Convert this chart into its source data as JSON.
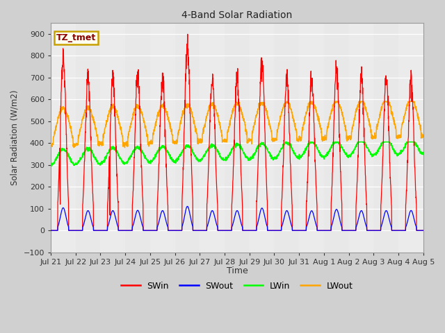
{
  "title": "4-Band Solar Radiation",
  "xlabel": "Time",
  "ylabel": "Solar Radiation (W/m2)",
  "ylim": [
    -100,
    950
  ],
  "yticks": [
    -100,
    0,
    100,
    200,
    300,
    400,
    500,
    600,
    700,
    800,
    900
  ],
  "annotation": "TZ_tmet",
  "fig_bg_color": "#d0d0d0",
  "plot_bg_color": "#e8e8e8",
  "legend_labels": [
    "SWin",
    "SWout",
    "LWin",
    "LWout"
  ],
  "legend_colors": [
    "red",
    "blue",
    "#00ff00",
    "orange"
  ],
  "x_tick_labels": [
    "Jul 21",
    "Jul 22",
    "Jul 23",
    "Jul 24",
    "Jul 25",
    "Jul 26",
    "Jul 27",
    "Jul 28",
    "Jul 29",
    "Jul 30",
    "Jul 31",
    "Aug 1",
    "Aug 2",
    "Aug 3",
    "Aug 4",
    "Aug 5"
  ],
  "n_days": 15,
  "pts_per_day": 144,
  "sw_peaks": [
    800,
    700,
    700,
    710,
    700,
    850,
    700,
    700,
    790,
    700,
    695,
    745,
    700,
    700,
    705
  ],
  "LWin_night": 300,
  "LWin_day_amp": 70,
  "LWout_night": 390,
  "LWout_day_amp": 170
}
